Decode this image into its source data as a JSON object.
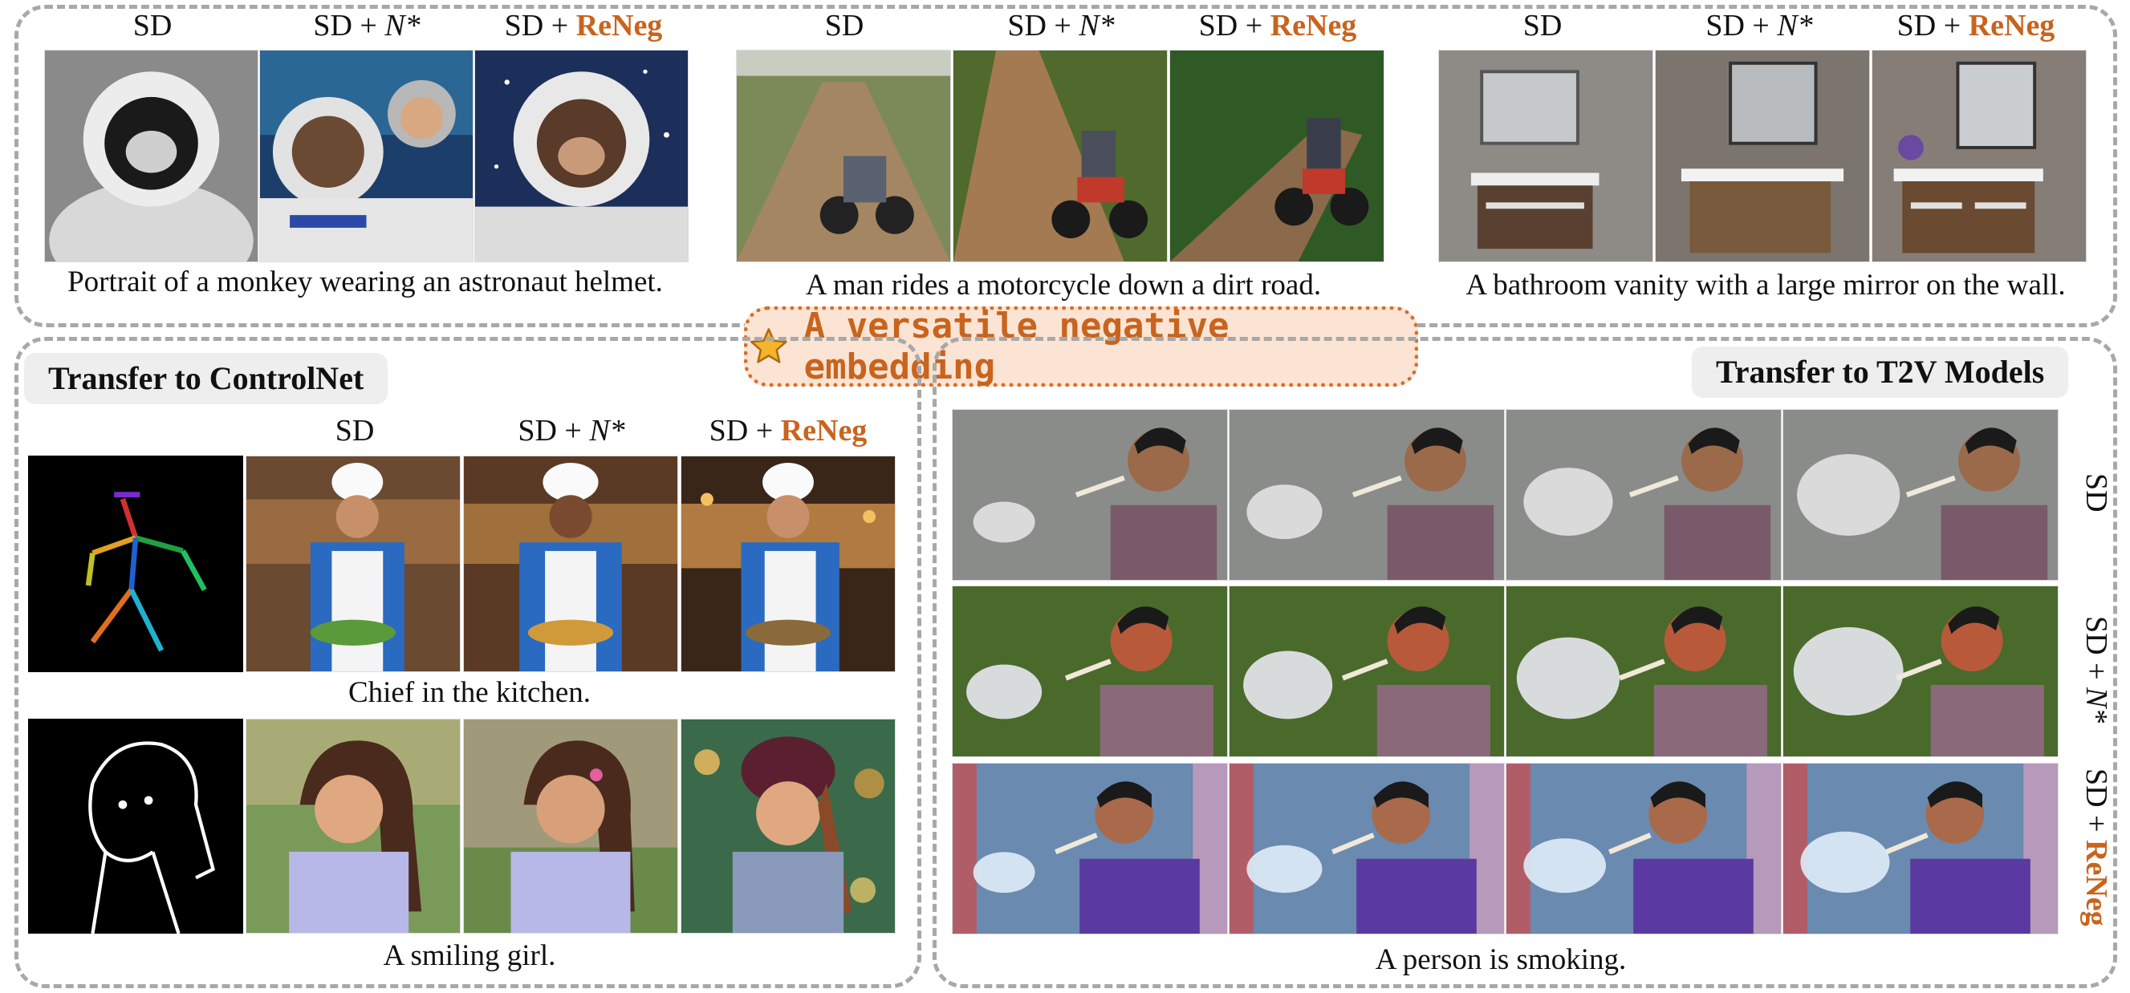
{
  "labels": {
    "sd": "SD",
    "sd_plus": "SD + ",
    "n_star": "N*",
    "reneg": "ReNeg"
  },
  "captions": {
    "monkey": "Portrait of a monkey wearing an astronaut helmet.",
    "motorcycle": "A man rides a motorcycle down a dirt road.",
    "bathroom": "A bathroom vanity with a large mirror on the wall.",
    "chef": "Chief in the kitchen.",
    "girl": "A smiling girl.",
    "smoking": "A person is smoking."
  },
  "banner": {
    "text": "A versatile negative embedding",
    "icon": "star-icon"
  },
  "sections": {
    "controlnet": "Transfer to ControlNet",
    "t2v": "Transfer to T2V Models"
  },
  "colors": {
    "accent": "#c8641e",
    "banner_bg": "#fbe4d4",
    "panel_border": "#a8a8a8",
    "tag_bg": "#eeeeee"
  }
}
